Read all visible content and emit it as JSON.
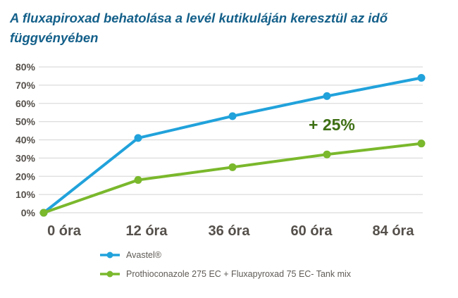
{
  "title": "A fluxapiroxad behatolása a levél kutikuláján keresztül az idő\nfüggvényében",
  "colors": {
    "title": "#14608a",
    "blue": "#21a2db",
    "green": "#7ab82c",
    "annotation_green": "#3e6f14",
    "axis_text": "#55504b",
    "grid": "#dcdcdc",
    "legend_text": "#5f5b56",
    "background": "#ffffff"
  },
  "chart_data": {
    "type": "line",
    "title": "A fluxapiroxad behatolása a levél kutikuláján keresztül az idő függvényében",
    "xlabel": "",
    "ylabel": "",
    "categories": [
      "0 óra",
      "12 óra",
      "36 óra",
      "60 óra",
      "84 óra"
    ],
    "series": [
      {
        "name": "Avastel®",
        "color_key": "blue",
        "values": [
          0,
          41,
          53,
          64,
          74
        ]
      },
      {
        "name": "Prothioconazole 275 EC + Fluxapyroxad 75 EC- Tank mix",
        "color_key": "green",
        "values": [
          0,
          18,
          25,
          32,
          38
        ]
      }
    ],
    "y_tick_labels": [
      "0%",
      "10%",
      "20%",
      "30%",
      "40%",
      "50%",
      "60%",
      "70%",
      "80%"
    ],
    "y_tick_values": [
      0,
      10,
      20,
      30,
      40,
      50,
      60,
      70,
      80
    ],
    "ylim": [
      0,
      80
    ],
    "grid": true,
    "legend_position": "bottom-left",
    "annotation": {
      "text": "+ 25%"
    }
  }
}
